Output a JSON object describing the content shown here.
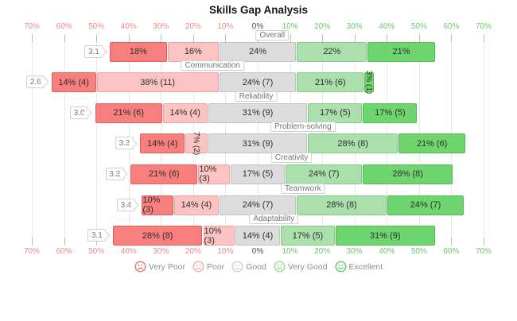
{
  "chart_data": {
    "type": "bar",
    "subtype": "diverging-stacked-likert",
    "title": "Skills Gap Analysis",
    "categories": [
      "Overall",
      "Communication",
      "Reliability",
      "Problem-solving",
      "Creativity",
      "Teamwork",
      "Adaptability"
    ],
    "avg_scores": [
      "3.1",
      "2.6",
      "3.0",
      "3.3",
      "3.3",
      "3.4",
      "3.1"
    ],
    "levels": [
      "Very Poor",
      "Poor",
      "Good",
      "Very Good",
      "Excellent"
    ],
    "series": [
      {
        "name": "Very Poor",
        "pct": [
          18,
          14,
          21,
          14,
          21,
          10,
          28
        ],
        "counts": [
          null,
          4,
          6,
          4,
          6,
          3,
          8
        ]
      },
      {
        "name": "Poor",
        "pct": [
          16,
          38,
          14,
          7,
          10,
          14,
          10
        ],
        "counts": [
          null,
          11,
          4,
          2,
          3,
          4,
          3
        ]
      },
      {
        "name": "Good",
        "pct": [
          24,
          24,
          31,
          31,
          17,
          24,
          14
        ],
        "counts": [
          null,
          7,
          9,
          9,
          5,
          7,
          4
        ]
      },
      {
        "name": "Very Good",
        "pct": [
          22,
          21,
          17,
          28,
          24,
          28,
          17
        ],
        "counts": [
          null,
          6,
          5,
          8,
          7,
          8,
          5
        ]
      },
      {
        "name": "Excellent",
        "pct": [
          21,
          3,
          17,
          21,
          28,
          24,
          31
        ],
        "counts": [
          null,
          1,
          5,
          6,
          8,
          7,
          9
        ]
      }
    ],
    "rows": [
      {
        "category": "Overall",
        "score": "3.1",
        "segments": [
          {
            "label": "18%",
            "pct": 18
          },
          {
            "label": "16%",
            "pct": 16
          },
          {
            "label": "24%",
            "pct": 24
          },
          {
            "label": "22%",
            "pct": 22
          },
          {
            "label": "21%",
            "pct": 21
          }
        ]
      },
      {
        "category": "Communication",
        "score": "2.6",
        "segments": [
          {
            "label": "14% (4)",
            "pct": 14
          },
          {
            "label": "38% (11)",
            "pct": 38
          },
          {
            "label": "24% (7)",
            "pct": 24
          },
          {
            "label": "21% (6)",
            "pct": 21
          },
          {
            "label": "3% (1)",
            "pct": 3,
            "rotated": true
          }
        ]
      },
      {
        "category": "Reliability",
        "score": "3.0",
        "segments": [
          {
            "label": "21% (6)",
            "pct": 21
          },
          {
            "label": "14% (4)",
            "pct": 14
          },
          {
            "label": "31% (9)",
            "pct": 31
          },
          {
            "label": "17% (5)",
            "pct": 17
          },
          {
            "label": "17% (5)",
            "pct": 17
          }
        ]
      },
      {
        "category": "Problem-solving",
        "score": "3.3",
        "segments": [
          {
            "label": "14% (4)",
            "pct": 14
          },
          {
            "label": "7% (2)",
            "pct": 7,
            "rotated": true
          },
          {
            "label": "31% (9)",
            "pct": 31
          },
          {
            "label": "28% (8)",
            "pct": 28
          },
          {
            "label": "21% (6)",
            "pct": 21
          }
        ]
      },
      {
        "category": "Creativity",
        "score": "3.3",
        "segments": [
          {
            "label": "21% (6)",
            "pct": 21
          },
          {
            "label": "10% (3)",
            "pct": 10
          },
          {
            "label": "17% (5)",
            "pct": 17
          },
          {
            "label": "24% (7)",
            "pct": 24
          },
          {
            "label": "28% (8)",
            "pct": 28
          }
        ]
      },
      {
        "category": "Teamwork",
        "score": "3.4",
        "segments": [
          {
            "label": "10% (3)",
            "pct": 10
          },
          {
            "label": "14% (4)",
            "pct": 14
          },
          {
            "label": "24% (7)",
            "pct": 24
          },
          {
            "label": "28% (8)",
            "pct": 28
          },
          {
            "label": "24% (7)",
            "pct": 24
          }
        ]
      },
      {
        "category": "Adaptability",
        "score": "3.1",
        "segments": [
          {
            "label": "28% (8)",
            "pct": 28
          },
          {
            "label": "10% (3)",
            "pct": 10
          },
          {
            "label": "14% (4)",
            "pct": 14
          },
          {
            "label": "17% (5)",
            "pct": 17
          },
          {
            "label": "31% (9)",
            "pct": 31
          }
        ]
      }
    ],
    "axis": {
      "min": -70,
      "max": 70,
      "step": 10,
      "unit": "%",
      "center_note": "Good segment centered on 0%",
      "ticks": [
        "70%",
        "60%",
        "50%",
        "40%",
        "30%",
        "20%",
        "10%",
        "0%",
        "10%",
        "20%",
        "30%",
        "40%",
        "50%",
        "60%",
        "70%"
      ],
      "left_color": "#f08989",
      "right_color": "#6cc86c",
      "zero_color": "#4a4a4a"
    }
  },
  "level_styles": [
    {
      "name": "Very Poor",
      "fill": "#f7807e",
      "border": "#e06060"
    },
    {
      "name": "Poor",
      "fill": "#fbc4c2",
      "border": "#eda3a1"
    },
    {
      "name": "Good",
      "fill": "#dcdcdc",
      "border": "#c2c2c2"
    },
    {
      "name": "Very Good",
      "fill": "#abdfab",
      "border": "#85cb85"
    },
    {
      "name": "Excellent",
      "fill": "#6fd66f",
      "border": "#4ebc4e"
    }
  ],
  "legend": [
    {
      "label": "Very Poor",
      "color": "#e96a6a",
      "face": "sad"
    },
    {
      "label": "Poor",
      "color": "#f4a7a7",
      "face": "sad"
    },
    {
      "label": "Good",
      "color": "#c9c9c9",
      "face": "neutral"
    },
    {
      "label": "Very Good",
      "color": "#8fd88f",
      "face": "smile"
    },
    {
      "label": "Excellent",
      "color": "#54c654",
      "face": "smile"
    }
  ]
}
